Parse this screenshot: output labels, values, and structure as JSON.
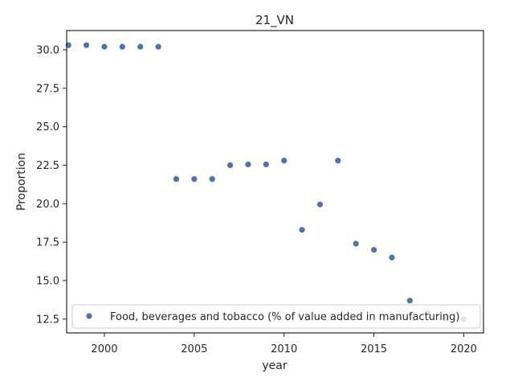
{
  "chart_data": {
    "type": "scatter",
    "title": "21_VN",
    "xlabel": "year",
    "ylabel": "Proportion",
    "xlim": [
      1997.9,
      2021.1
    ],
    "ylim": [
      11.6,
      31.25
    ],
    "xticks": [
      2000,
      2005,
      2010,
      2015,
      2020
    ],
    "yticks": [
      12.5,
      15.0,
      17.5,
      20.0,
      22.5,
      25.0,
      27.5,
      30.0
    ],
    "xtick_labels": [
      "2000",
      "2005",
      "2010",
      "2015",
      "2020"
    ],
    "ytick_labels": [
      "12.5",
      "15.0",
      "17.5",
      "20.0",
      "22.5",
      "25.0",
      "27.5",
      "30.0"
    ],
    "grid": false,
    "legend_position": "lower-left",
    "series": [
      {
        "name": "Food, beverages and tobacco (% of value added in manufacturing)",
        "color": "#4c72b0",
        "x": [
          1998,
          1999,
          2000,
          2001,
          2002,
          2003,
          2004,
          2005,
          2006,
          2007,
          2008,
          2009,
          2010,
          2011,
          2012,
          2013,
          2014,
          2015,
          2016,
          2017,
          2018,
          2019,
          2020
        ],
        "y": [
          30.3,
          30.3,
          30.2,
          30.2,
          30.2,
          30.2,
          21.6,
          21.6,
          21.6,
          22.5,
          22.55,
          22.55,
          22.8,
          18.3,
          19.95,
          22.8,
          17.4,
          17.0,
          16.5,
          13.7,
          12.9,
          12.5,
          12.5
        ]
      }
    ]
  }
}
